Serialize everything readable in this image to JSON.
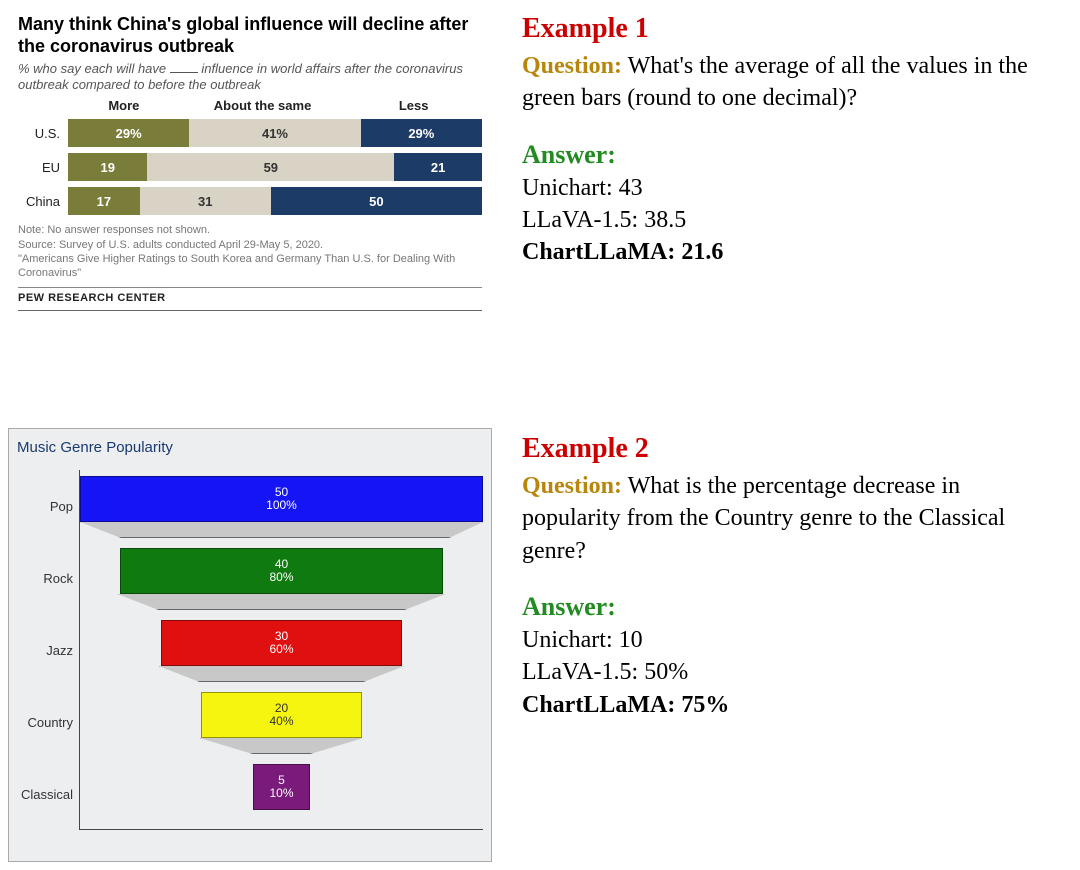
{
  "example1": {
    "label": "Example 1",
    "question_label": "Question:",
    "question_text": " What's the average of all the values in the green bars (round to one decimal)?",
    "answer_label": "Answer:",
    "answers": [
      {
        "model": "Unichart",
        "value": "43",
        "bold": false
      },
      {
        "model": "LLaVA-1.5",
        "value": "38.5",
        "bold": false
      },
      {
        "model": "ChartLLaMA",
        "value": "21.6",
        "bold": true
      }
    ],
    "pew_chart": {
      "title": "Many think China's global influence will decline after the coronavirus outbreak",
      "subtitle_pre": "% who say each will have ",
      "subtitle_post": " influence in world affairs after the coronavirus outbreak compared to before the outbreak",
      "headers": {
        "more": "More",
        "same": "About the same",
        "less": "Less"
      },
      "rows": [
        {
          "label": "U.S.",
          "more": 29,
          "more_label": "29%",
          "same": 41,
          "same_label": "41%",
          "less": 29,
          "less_label": "29%"
        },
        {
          "label": "EU",
          "more": 19,
          "more_label": "19",
          "same": 59,
          "same_label": "59",
          "less": 21,
          "less_label": "21"
        },
        {
          "label": "China",
          "more": 17,
          "more_label": "17",
          "same": 31,
          "same_label": "31",
          "less": 50,
          "less_label": "50"
        }
      ],
      "colors": {
        "more": "#7a7c3a",
        "same": "#d8d3c4",
        "less": "#1c3b66"
      },
      "note1": "Note: No answer responses not shown.",
      "note2": "Source: Survey of U.S. adults conducted April 29-May 5, 2020.",
      "note3": "\"Americans Give Higher Ratings to South Korea and Germany Than U.S. for Dealing With Coronavirus\"",
      "source": "PEW RESEARCH CENTER"
    }
  },
  "example2": {
    "label": "Example 2",
    "question_label": "Question:",
    "question_text": " What is the percentage decrease in popularity from the Country genre to the Classical genre?",
    "answer_label": "Answer:",
    "answers": [
      {
        "model": "Unichart",
        "value": "10",
        "bold": false
      },
      {
        "model": "LLaVA-1.5",
        "value": "50%",
        "bold": false
      },
      {
        "model": "ChartLLaMA",
        "value": "75%",
        "bold": true
      }
    ],
    "funnel_chart": {
      "title": "Music Genre Popularity",
      "bg": "#eceef0",
      "connector_color": "#c8c8c8",
      "stages": [
        {
          "label": "Pop",
          "value": 50,
          "pct": "100%",
          "value_label": "50",
          "width_pct": 100,
          "color": "#1414f5"
        },
        {
          "label": "Rock",
          "value": 40,
          "pct": "80%",
          "value_label": "40",
          "width_pct": 80,
          "color": "#0f7a0f"
        },
        {
          "label": "Jazz",
          "value": 30,
          "pct": "60%",
          "value_label": "30",
          "width_pct": 60,
          "color": "#e01010"
        },
        {
          "label": "Country",
          "value": 20,
          "pct": "40%",
          "value_label": "20",
          "width_pct": 40,
          "color": "#f5f510",
          "text_color": "#333"
        },
        {
          "label": "Classical",
          "value": 5,
          "pct": "10%",
          "value_label": "5",
          "width_pct": 14,
          "color": "#7a1a7a"
        }
      ]
    }
  }
}
